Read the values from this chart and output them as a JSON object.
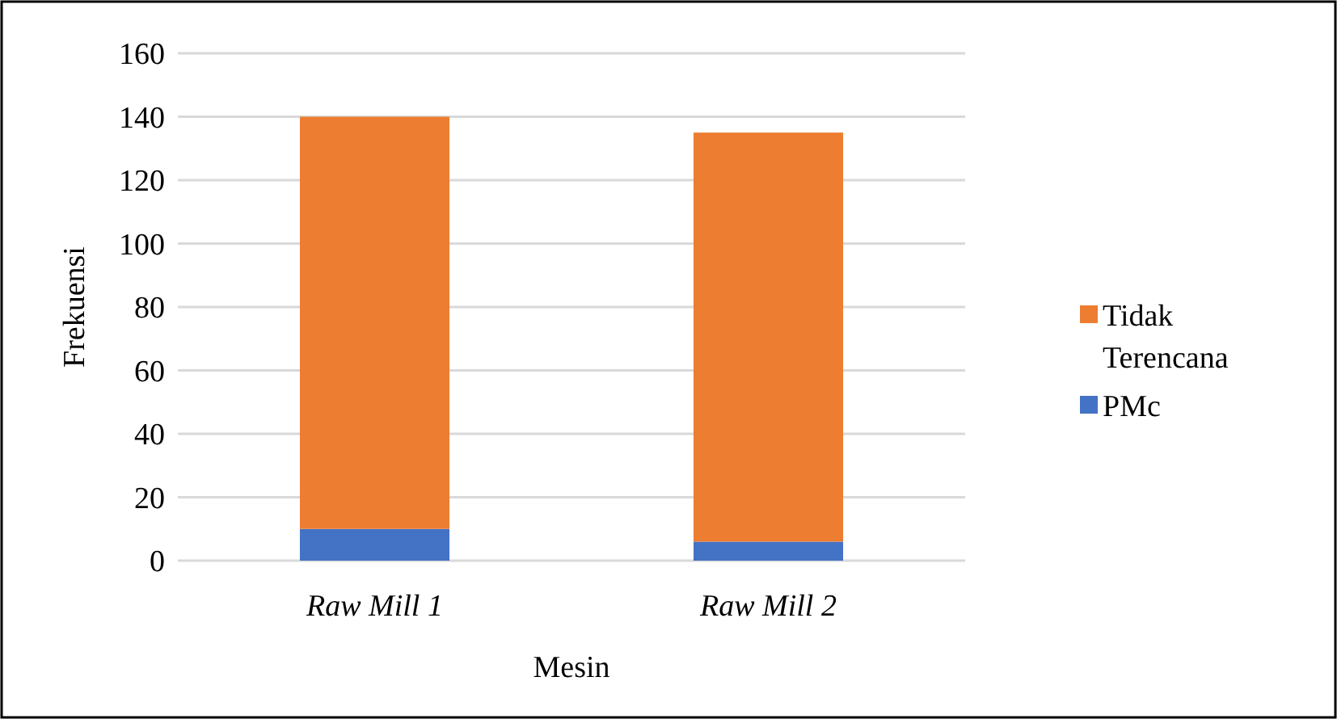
{
  "chart_data": {
    "type": "bar",
    "stacked": true,
    "xlabel": "Mesin",
    "ylabel": "Frekuensi",
    "categories": [
      "Raw Mill 1",
      "Raw Mill 2"
    ],
    "series": [
      {
        "name": "PMc",
        "color": "#4472c4",
        "values": [
          10,
          6
        ]
      },
      {
        "name": "Tidak Terencana",
        "color": "#ed7d31",
        "values": [
          130,
          129
        ]
      }
    ],
    "ylim": [
      0,
      160
    ],
    "yticks": [
      0,
      20,
      40,
      60,
      80,
      100,
      120,
      140,
      160
    ],
    "grid": "y",
    "legend": "right"
  }
}
